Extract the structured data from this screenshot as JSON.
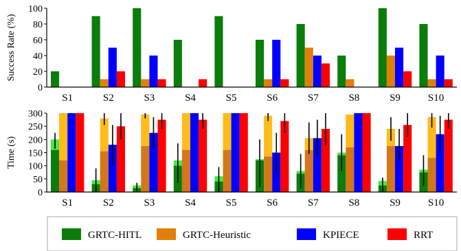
{
  "chart_data": [
    {
      "type": "bar",
      "ylabel": "Success Rate (%)",
      "ylim": [
        0,
        100
      ],
      "yticks": [
        0,
        20,
        40,
        60,
        80,
        100
      ],
      "categories": [
        "S1",
        "S2",
        "S3",
        "S4",
        "S5",
        "S6",
        "S7",
        "S8",
        "S9",
        "S10"
      ],
      "series": [
        {
          "name": "GRTC-HITL",
          "color": "#0a7d0a",
          "values": [
            20,
            90,
            100,
            60,
            90,
            60,
            80,
            40,
            100,
            80
          ]
        },
        {
          "name": "GRTC-Heuristic",
          "color": "#e0800a",
          "values": [
            0,
            10,
            10,
            0,
            0,
            10,
            50,
            10,
            40,
            10
          ]
        },
        {
          "name": "KPIECE",
          "color": "#0000ff",
          "values": [
            0,
            50,
            40,
            0,
            0,
            60,
            40,
            0,
            50,
            40
          ]
        },
        {
          "name": "RRT",
          "color": "#ff0000",
          "values": [
            0,
            20,
            10,
            10,
            0,
            10,
            30,
            0,
            20,
            10
          ]
        }
      ]
    },
    {
      "type": "bar",
      "ylabel": "Time (s)",
      "ylim": [
        0,
        300
      ],
      "yticks": [
        0,
        50,
        100,
        150,
        200,
        250,
        300
      ],
      "categories": [
        "S1",
        "S2",
        "S3",
        "S4",
        "S5",
        "S6",
        "S7",
        "S8",
        "S9",
        "S10"
      ],
      "series": [
        {
          "name": "GRTC-HITL",
          "color": "#0a7d0a",
          "light_color": "#44e844",
          "values": [
            160,
            30,
            15,
            100,
            40,
            120,
            70,
            140,
            25,
            75
          ],
          "light_values": [
            200,
            45,
            25,
            120,
            60,
            125,
            80,
            150,
            42,
            85
          ],
          "err": [
            [
              165,
              225
            ],
            [
              0,
              90
            ],
            [
              5,
              35
            ],
            [
              35,
              185
            ],
            [
              0,
              95
            ],
            [
              20,
              200
            ],
            [
              15,
              145
            ],
            [
              80,
              220
            ],
            [
              0,
              55
            ],
            [
              25,
              140
            ]
          ]
        },
        {
          "name": "GRTC-Heuristic",
          "color": "#d4761a",
          "light_color": "#ffbb1a",
          "values": [
            120,
            155,
            175,
            160,
            160,
            135,
            160,
            170,
            175,
            130
          ],
          "light_values": [
            300,
            280,
            295,
            300,
            300,
            290,
            205,
            295,
            240,
            285
          ],
          "err": [
            [
              300,
              300
            ],
            [
              255,
              300
            ],
            [
              280,
              300
            ],
            [
              300,
              300
            ],
            [
              300,
              300
            ],
            [
              270,
              300
            ],
            [
              145,
              265
            ],
            [
              300,
              300
            ],
            [
              195,
              285
            ],
            [
              245,
              300
            ]
          ]
        },
        {
          "name": "KPIECE",
          "color": "#0000ff",
          "light_color": "#0000ff",
          "values": [
            300,
            180,
            225,
            300,
            300,
            150,
            205,
            300,
            175,
            220
          ],
          "light_values": [
            300,
            180,
            225,
            300,
            300,
            150,
            205,
            300,
            175,
            220
          ],
          "err": [
            [
              300,
              300
            ],
            [
              100,
              255
            ],
            [
              165,
              285
            ],
            [
              300,
              300
            ],
            [
              300,
              300
            ],
            [
              75,
              225
            ],
            [
              135,
              275
            ],
            [
              300,
              300
            ],
            [
              120,
              240
            ],
            [
              155,
              290
            ]
          ]
        },
        {
          "name": "RRT",
          "color": "#ff0000",
          "light_color": "#ff0000",
          "values": [
            300,
            250,
            275,
            275,
            300,
            270,
            240,
            300,
            255,
            275
          ],
          "light_values": [
            300,
            250,
            275,
            275,
            300,
            270,
            240,
            300,
            255,
            275
          ],
          "err": [
            [
              300,
              300
            ],
            [
              200,
              300
            ],
            [
              240,
              300
            ],
            [
              240,
              300
            ],
            [
              300,
              300
            ],
            [
              225,
              300
            ],
            [
              175,
              300
            ],
            [
              300,
              300
            ],
            [
              210,
              300
            ],
            [
              240,
              300
            ]
          ]
        }
      ]
    }
  ],
  "legend": [
    {
      "label": "GRTC-HITL",
      "color": "#0a7d0a"
    },
    {
      "label": "GRTC-Heuristic",
      "color": "#e0800a"
    },
    {
      "label": "KPIECE",
      "color": "#0000ff"
    },
    {
      "label": "RRT",
      "color": "#ff0000"
    }
  ]
}
